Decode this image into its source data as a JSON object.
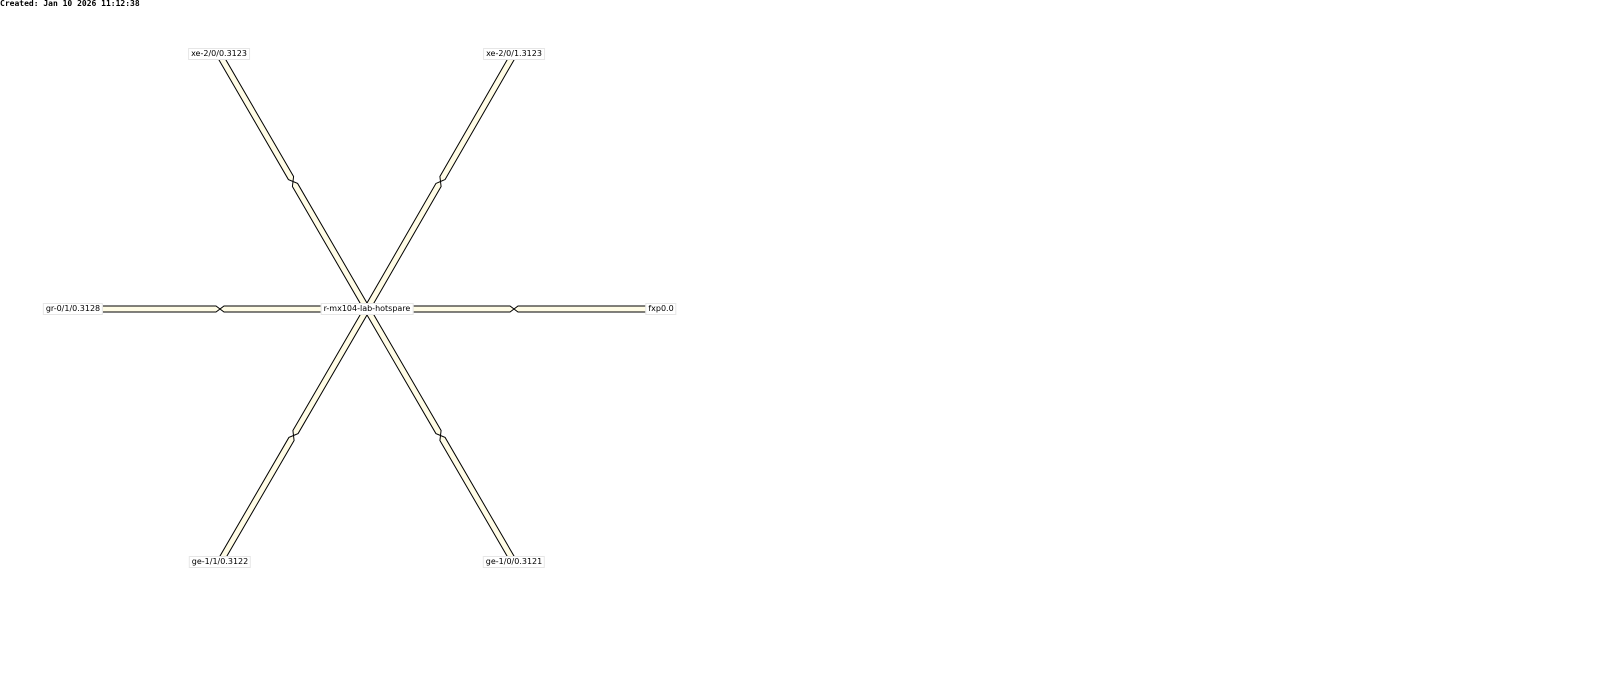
{
  "created": "Created: Jan 10 2026 11:12:38",
  "link_fill": "#fffce6",
  "link_outline": "#000000",
  "center": {
    "id": "center",
    "label": "r-mx104-lab-hotspare"
  },
  "nodes": [
    {
      "id": "xe200",
      "label": "xe-2/0/0.3123"
    },
    {
      "id": "xe201",
      "label": "xe-2/0/1.3123"
    },
    {
      "id": "gr010",
      "label": "gr-0/1/0.3128"
    },
    {
      "id": "fxp0",
      "label": "fxp0.0"
    },
    {
      "id": "ge110",
      "label": "ge-1/1/0.3122"
    },
    {
      "id": "ge100",
      "label": "ge-1/0/0.3121"
    }
  ]
}
